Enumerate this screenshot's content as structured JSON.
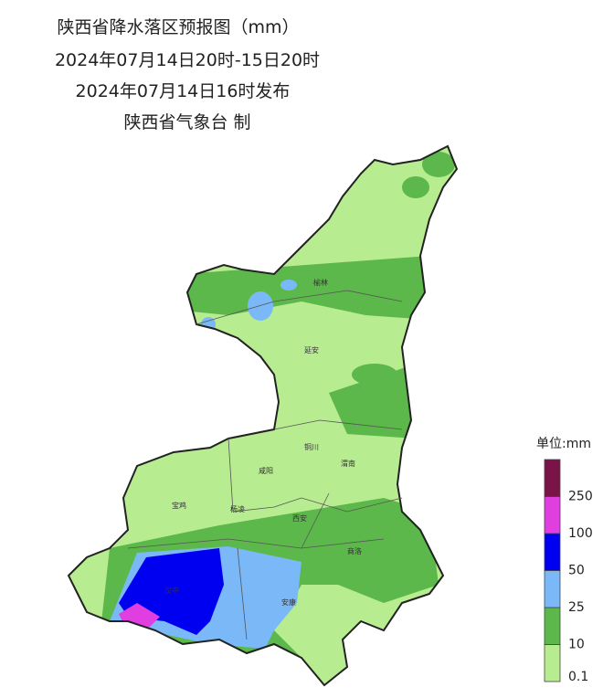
{
  "header": {
    "title": "陕西省降水落区预报图（mm）",
    "period": "2024年07月14日20时-15日20时",
    "issued": "2024年07月14日16时发布",
    "agency": "陕西省气象台 制"
  },
  "cities": [
    "榆林",
    "延安",
    "铜川",
    "咸阳",
    "渭南",
    "宝鸡",
    "杨凌",
    "西安",
    "商洛",
    "汉中",
    "安康"
  ],
  "legend": {
    "title": "单位:mm",
    "colors": [
      "#b8ec90",
      "#5cb84a",
      "#7ab8f8",
      "#0000f0",
      "#e03ee0",
      "#7a1448"
    ],
    "labels": [
      "0.1",
      "10",
      "25",
      "50",
      "100",
      "250"
    ]
  }
}
